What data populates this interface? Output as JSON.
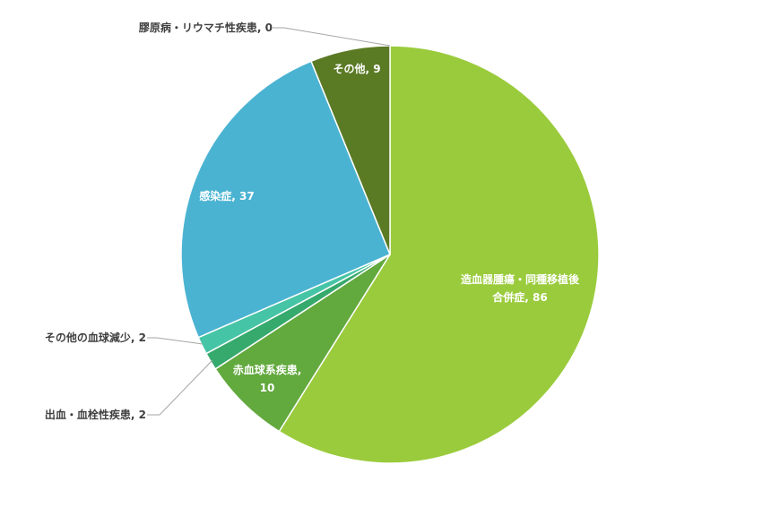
{
  "chart_data": {
    "type": "pie",
    "title": "",
    "slices": [
      {
        "label": "造血器腫瘍・同種移植後合併症",
        "value": 86,
        "color": "#9acb3c"
      },
      {
        "label": "赤血球系疾患",
        "value": 10,
        "color": "#62a93e"
      },
      {
        "label": "出血・血栓性疾患",
        "value": 2,
        "color": "#36a96c"
      },
      {
        "label": "その他の血球減少",
        "value": 2,
        "color": "#46c4a6"
      },
      {
        "label": "感染症",
        "value": 37,
        "color": "#4bb3d2"
      },
      {
        "label": "膠原病・リウマチ性疾患",
        "value": 0,
        "color": "#3d8eb8"
      },
      {
        "label": "その他",
        "value": 9,
        "color": "#5a7a24"
      }
    ],
    "legend": "none",
    "data_labels": {
      "s0": {
        "line1": "造血器腫瘍・同種移植後",
        "line2": "合併症, 86"
      },
      "s1": {
        "line1": "赤血球系疾患,",
        "line2": "10"
      },
      "s2": {
        "text": "出血・血栓性疾患, 2"
      },
      "s3": {
        "text": "その他の血球減少, 2"
      },
      "s4": {
        "text": "感染症, 37"
      },
      "s5": {
        "text": "膠原病・リウマチ性疾患, 0"
      },
      "s6": {
        "text": "その他, 9"
      }
    }
  }
}
